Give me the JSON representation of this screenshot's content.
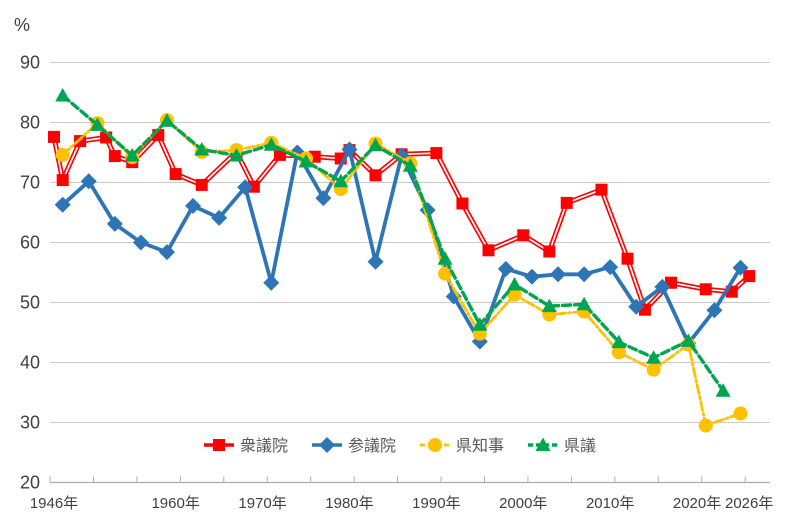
{
  "chart_data": {
    "type": "line",
    "title": "",
    "unit_label": "%",
    "x_axis": {
      "min_year": 1946,
      "max_year": 2027,
      "tick_interval_years": 5,
      "labels": [
        {
          "text": "1946年",
          "year": 1946
        },
        {
          "text": "1960年",
          "year": 1960
        },
        {
          "text": "1970年",
          "year": 1970
        },
        {
          "text": "1980年",
          "year": 1980
        },
        {
          "text": "1990年",
          "year": 1990
        },
        {
          "text": "2000年",
          "year": 2000
        },
        {
          "text": "2010年",
          "year": 2010
        },
        {
          "text": "2020年",
          "year": 2020
        },
        {
          "text": "2026年",
          "year": 2026
        }
      ]
    },
    "y_axis": {
      "min": 20,
      "max": 90,
      "step": 10,
      "tick_labels": [
        "20",
        "30",
        "40",
        "50",
        "60",
        "70",
        "80",
        "90"
      ],
      "grid": true
    },
    "legend_position": "bottom-center",
    "series": [
      {
        "id": "shugiin",
        "name": "衆議院",
        "color": "#FF0000",
        "line_style": "double",
        "marker": "square",
        "points": [
          [
            1946,
            77.6
          ],
          [
            1947,
            70.4
          ],
          [
            1949,
            76.9
          ],
          [
            1952,
            77.5
          ],
          [
            1953,
            74.4
          ],
          [
            1955,
            73.4
          ],
          [
            1958,
            77.9
          ],
          [
            1960,
            71.4
          ],
          [
            1963,
            69.6
          ],
          [
            1967,
            75.1
          ],
          [
            1969,
            69.3
          ],
          [
            1972,
            74.6
          ],
          [
            1976,
            74.3
          ],
          [
            1979,
            74.0
          ],
          [
            1980,
            75.4
          ],
          [
            1983,
            71.2
          ],
          [
            1986,
            74.7
          ],
          [
            1990,
            74.9
          ],
          [
            1993,
            66.5
          ],
          [
            1996,
            58.7
          ],
          [
            2000,
            61.2
          ],
          [
            2003,
            58.5
          ],
          [
            2005,
            66.6
          ],
          [
            2009,
            68.8
          ],
          [
            2012,
            57.3
          ],
          [
            2014,
            48.8
          ],
          [
            2017,
            53.3
          ],
          [
            2021,
            52.2
          ],
          [
            2024,
            51.8
          ],
          [
            2026,
            54.4
          ]
        ]
      },
      {
        "id": "sangiin",
        "name": "参議院",
        "color": "#2E75B6",
        "line_style": "solid",
        "marker": "diamond",
        "points": [
          [
            1947,
            66.3
          ],
          [
            1950,
            70.2
          ],
          [
            1953,
            63.1
          ],
          [
            1956,
            60.0
          ],
          [
            1959,
            58.4
          ],
          [
            1962,
            66.1
          ],
          [
            1965,
            64.1
          ],
          [
            1968,
            69.2
          ],
          [
            1971,
            53.3
          ],
          [
            1974,
            75.0
          ],
          [
            1977,
            67.4
          ],
          [
            1980,
            75.5
          ],
          [
            1983,
            56.8
          ],
          [
            1986,
            74.5
          ],
          [
            1989,
            65.4
          ],
          [
            1992,
            51.0
          ],
          [
            1995,
            43.5
          ],
          [
            1998,
            55.6
          ],
          [
            2001,
            54.3
          ],
          [
            2004,
            54.7
          ],
          [
            2007,
            54.7
          ],
          [
            2010,
            55.9
          ],
          [
            2013,
            49.3
          ],
          [
            2016,
            52.6
          ],
          [
            2019,
            43.2
          ],
          [
            2022,
            48.7
          ],
          [
            2025,
            55.8
          ]
        ]
      },
      {
        "id": "kenchiji",
        "name": "県知事",
        "color": "#FFC000",
        "line_style": "dashdot",
        "marker": "circle",
        "points": [
          [
            1947,
            74.6
          ],
          [
            1951,
            79.9
          ],
          [
            1955,
            74.2
          ],
          [
            1959,
            80.4
          ],
          [
            1963,
            75.1
          ],
          [
            1967,
            75.4
          ],
          [
            1971,
            76.6
          ],
          [
            1975,
            74.0
          ],
          [
            1979,
            68.9
          ],
          [
            1983,
            76.5
          ],
          [
            1987,
            73.2
          ],
          [
            1991,
            54.8
          ],
          [
            1995,
            44.8
          ],
          [
            1999,
            51.3
          ],
          [
            2003,
            48.0
          ],
          [
            2007,
            48.5
          ],
          [
            2011,
            41.7
          ],
          [
            2015,
            38.8
          ],
          [
            2019,
            43.0
          ],
          [
            2021,
            29.5
          ],
          [
            2025,
            31.5
          ]
        ]
      },
      {
        "id": "kengi",
        "name": "県議",
        "color": "#00A550",
        "line_style": "dashed",
        "marker": "triangle",
        "points": [
          [
            1947,
            84.5
          ],
          [
            1951,
            79.6
          ],
          [
            1955,
            74.5
          ],
          [
            1959,
            80.3
          ],
          [
            1963,
            75.5
          ],
          [
            1967,
            74.5
          ],
          [
            1971,
            76.3
          ],
          [
            1975,
            73.5
          ],
          [
            1979,
            70.2
          ],
          [
            1983,
            76.2
          ],
          [
            1987,
            72.8
          ],
          [
            1991,
            57.3
          ],
          [
            1995,
            46.3
          ],
          [
            1999,
            53.0
          ],
          [
            2003,
            49.4
          ],
          [
            2007,
            49.7
          ],
          [
            2011,
            43.4
          ],
          [
            2015,
            40.8
          ],
          [
            2019,
            43.6
          ],
          [
            2023,
            35.3
          ]
        ]
      }
    ]
  },
  "style": {
    "grid_color": "#C9C9C9",
    "axis_color": "#ADADAD",
    "axis_text_color": "#404040",
    "legend_text_color": "#595959",
    "background": "#FFFFFF"
  }
}
